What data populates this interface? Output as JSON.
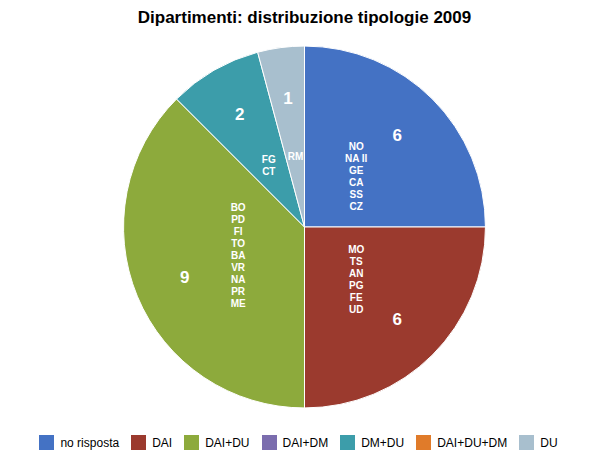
{
  "chart_data": {
    "type": "pie",
    "title": "Dipartimenti: distribuzione tipologie 2009",
    "categories": [
      "no risposta",
      "DAI",
      "DAI+DU",
      "DAI+DM",
      "DM+DU",
      "DAI+DU+DM",
      "DU"
    ],
    "values": [
      6,
      6,
      9,
      0,
      2,
      0,
      1
    ],
    "colors": [
      "#4472C4",
      "#9B3A2E",
      "#8DAA3C",
      "#7B6DAE",
      "#3C9DAA",
      "#E07B2A",
      "#A8BFCE"
    ],
    "data_labels": true,
    "legend": "bottom",
    "annotations": [
      {
        "category": "no risposta",
        "text": "NO\nNA II\nGE\nCA\nSS\nCZ"
      },
      {
        "category": "DAI",
        "text": "MO\nTS\nAN\nPG\nFE\nUD"
      },
      {
        "category": "DAI+DU",
        "text": "BO\nPD\nFI\nTO\nBA\nVR\nNA\nPR\nME"
      },
      {
        "category": "DM+DU",
        "text": "FG\nCT"
      },
      {
        "category": "DU",
        "text": "RM"
      }
    ]
  }
}
